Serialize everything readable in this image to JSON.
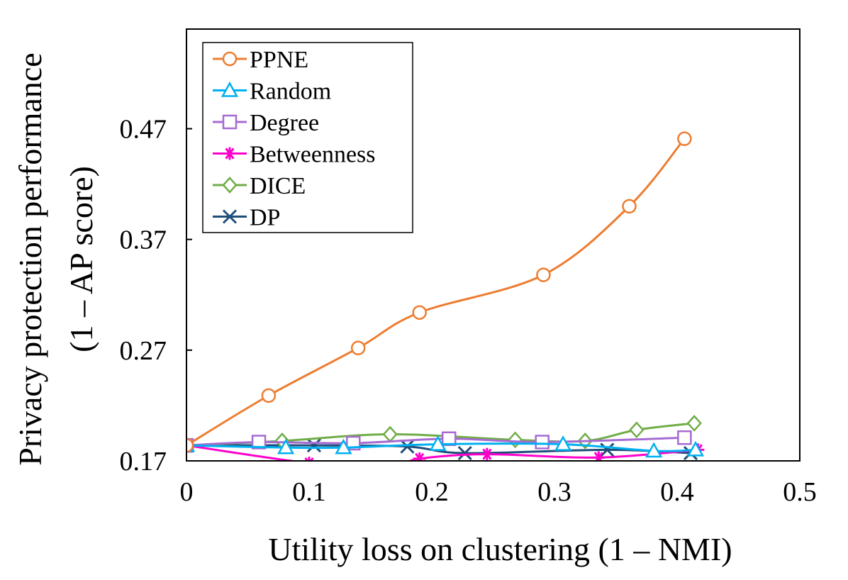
{
  "chart_data": {
    "type": "line",
    "title": "",
    "xlabel": "Utility loss on clustering (1 – NMI)",
    "ylabel_line1": "Privacy protection performance",
    "ylabel_line2": "(1 – AP score)",
    "xlim": [
      0,
      0.5
    ],
    "ylim": [
      0.17,
      0.56
    ],
    "xticks": [
      0,
      0.1,
      0.2,
      0.3,
      0.4,
      0.5
    ],
    "xtick_labels": [
      "0",
      "0.1",
      "0.2",
      "0.3",
      "0.4",
      "0.5"
    ],
    "yticks": [
      0.17,
      0.27,
      0.37,
      0.47
    ],
    "ytick_labels": [
      "0.17",
      "0.27",
      "0.37",
      "0.47"
    ],
    "grid": false,
    "legend_position": "top-left",
    "series": [
      {
        "name": "PPNE",
        "color": "#ED7D31",
        "marker": "circle",
        "x": [
          0,
          0.067,
          0.14,
          0.19,
          0.291,
          0.361,
          0.406
        ],
        "y": [
          0.184,
          0.229,
          0.272,
          0.304,
          0.338,
          0.4,
          0.461
        ]
      },
      {
        "name": "Random",
        "color": "#00B0F0",
        "marker": "triangle",
        "x": [
          0,
          0.081,
          0.128,
          0.205,
          0.307,
          0.381,
          0.415
        ],
        "y": [
          0.184,
          0.182,
          0.182,
          0.185,
          0.185,
          0.179,
          0.18
        ]
      },
      {
        "name": "Degree",
        "color": "#A66BD3",
        "marker": "square",
        "x": [
          0,
          0.059,
          0.136,
          0.214,
          0.29,
          0.406
        ],
        "y": [
          0.184,
          0.187,
          0.186,
          0.19,
          0.187,
          0.191
        ]
      },
      {
        "name": "Betweenness",
        "color": "#FF00CC",
        "marker": "asterisk",
        "x": [
          0,
          0.1,
          0.165,
          0.19,
          0.245,
          0.336,
          0.417
        ],
        "y": [
          0.184,
          0.168,
          0.164,
          0.172,
          0.176,
          0.173,
          0.18
        ]
      },
      {
        "name": "DICE",
        "color": "#70AD47",
        "marker": "diamond",
        "x": [
          0,
          0.078,
          0.166,
          0.268,
          0.325,
          0.367,
          0.414
        ],
        "y": [
          0.184,
          0.188,
          0.194,
          0.189,
          0.188,
          0.198,
          0.204
        ]
      },
      {
        "name": "DP",
        "color": "#1F4E79",
        "marker": "x",
        "x": [
          0,
          0.104,
          0.18,
          0.227,
          0.343,
          0.411
        ],
        "y": [
          0.184,
          0.184,
          0.183,
          0.177,
          0.18,
          0.177
        ]
      }
    ]
  }
}
